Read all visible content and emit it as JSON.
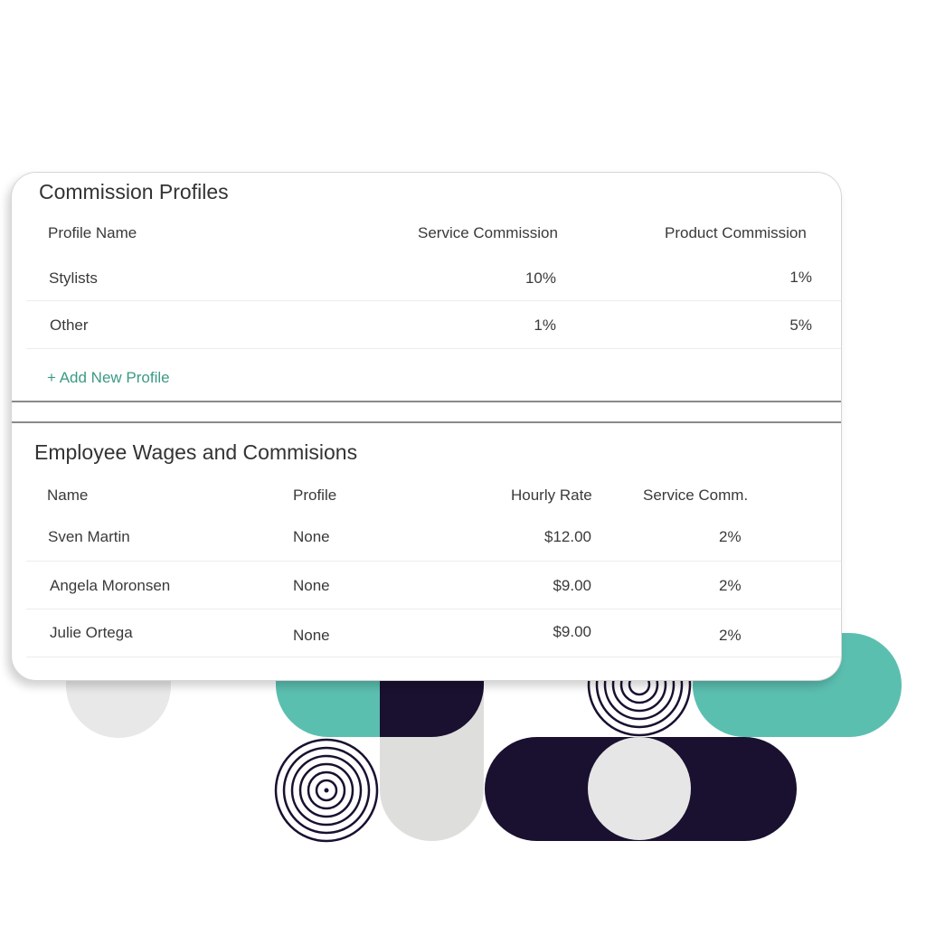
{
  "commission_profiles": {
    "title": "Commission Profiles",
    "columns": [
      "Profile Name",
      "Service Commission",
      "Product Commission"
    ],
    "rows": [
      {
        "name": "Stylists",
        "service": "10%",
        "product": "1%"
      },
      {
        "name": "Other",
        "service": "1%",
        "product": "5%"
      }
    ],
    "add_label": "+ Add New Profile"
  },
  "employees": {
    "title": "Employee Wages and Commisions",
    "columns": [
      "Name",
      "Profile",
      "Hourly Rate",
      "Service Comm."
    ],
    "rows": [
      {
        "name": "Sven Martin",
        "profile": "None",
        "rate": "$12.00",
        "comm": "2%"
      },
      {
        "name": "Angela Moronsen",
        "profile": "None",
        "rate": "$9.00",
        "comm": "2%"
      },
      {
        "name": "Julie Ortega",
        "profile": "None",
        "rate": "$9.00",
        "comm": "2%"
      }
    ]
  },
  "colors": {
    "accent": "#3c9a84",
    "teal": "#5bbfb0",
    "navy": "#1a1030",
    "gray": "#e4e4e4"
  }
}
